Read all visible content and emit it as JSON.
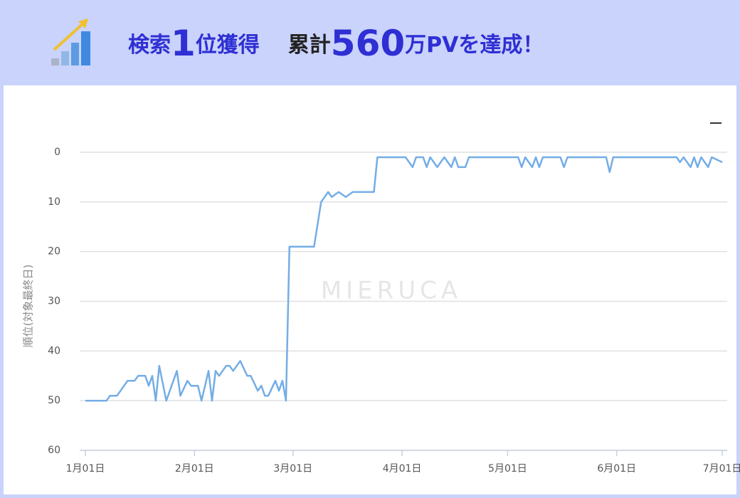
{
  "header": {
    "headline": [
      {
        "text": "検索",
        "color": "#2f2fd4",
        "size": "normal"
      },
      {
        "text": "1",
        "color": "#2f2fd4",
        "size": "large"
      },
      {
        "text": "位獲得",
        "color": "#2f2fd4",
        "size": "normal"
      },
      {
        "text": "累計",
        "color": "#222222",
        "size": "normal"
      },
      {
        "text": "560",
        "color": "#2f2fd4",
        "size": "large"
      },
      {
        "text": "万PVを達成！",
        "color": "#2f2fd4",
        "size": "normal"
      }
    ]
  },
  "chart_data": {
    "type": "line",
    "y_label": "順位(対象最終日)",
    "watermark": "MIERUCA",
    "x": [
      "01-01",
      "01-07",
      "01-08",
      "01-10",
      "01-13",
      "01-15",
      "01-16",
      "01-18",
      "01-19",
      "01-20",
      "01-21",
      "01-22",
      "01-24",
      "01-25",
      "01-27",
      "01-28",
      "01-30",
      "01-31",
      "02-02",
      "02-03",
      "02-05",
      "02-06",
      "02-07",
      "02-08",
      "02-10",
      "02-11",
      "02-12",
      "02-14",
      "02-16",
      "02-17",
      "02-19",
      "02-20",
      "02-21",
      "02-22",
      "02-24",
      "02-25",
      "02-26",
      "02-27",
      "02-28",
      "03-07",
      "03-09",
      "03-10",
      "03-11",
      "03-12",
      "03-14",
      "03-16",
      "03-18",
      "03-24",
      "03-25",
      "04-02",
      "04-04",
      "04-05",
      "04-07",
      "04-08",
      "04-09",
      "04-11",
      "04-13",
      "04-15",
      "04-16",
      "04-17",
      "04-19",
      "04-20",
      "05-04",
      "05-05",
      "05-06",
      "05-08",
      "05-09",
      "05-10",
      "05-11",
      "05-16",
      "05-17",
      "05-18",
      "05-29",
      "05-30",
      "05-31",
      "06-18",
      "06-19",
      "06-20",
      "06-22",
      "06-23",
      "06-24",
      "06-25",
      "06-27",
      "06-28",
      "07-01"
    ],
    "series": [
      {
        "color": "#74ade6",
        "values": [
          50,
          50,
          49,
          49,
          46,
          46,
          45,
          45,
          47,
          45,
          50,
          43,
          50,
          48,
          44,
          49,
          46,
          47,
          47,
          50,
          44,
          50,
          44,
          45,
          43,
          43,
          44,
          42,
          45,
          45,
          48,
          47,
          49,
          49,
          46,
          48,
          46,
          50,
          19,
          19,
          10,
          9,
          8,
          9,
          8,
          9,
          8,
          8,
          1,
          1,
          3,
          1,
          1,
          3,
          1,
          3,
          1,
          3,
          1,
          3,
          3,
          1,
          1,
          3,
          1,
          3,
          1,
          3,
          1,
          1,
          3,
          1,
          1,
          4,
          1,
          1,
          2,
          1,
          3,
          1,
          3,
          1,
          3,
          1,
          2
        ]
      }
    ],
    "xlim": [
      "01-01",
      "07-02"
    ],
    "xticks": [
      {
        "value": "01-01",
        "label": "1月01日"
      },
      {
        "value": "02-01",
        "label": "2月01日"
      },
      {
        "value": "03-01",
        "label": "3月01日"
      },
      {
        "value": "04-01",
        "label": "4月01日"
      },
      {
        "value": "05-01",
        "label": "5月01日"
      },
      {
        "value": "06-01",
        "label": "6月01日"
      },
      {
        "value": "07-01",
        "label": "7月01日"
      }
    ],
    "ylim": [
      0,
      60
    ],
    "y_inverted": true,
    "yticks": [
      0,
      10,
      20,
      30,
      40,
      50,
      60
    ],
    "grid": true
  }
}
